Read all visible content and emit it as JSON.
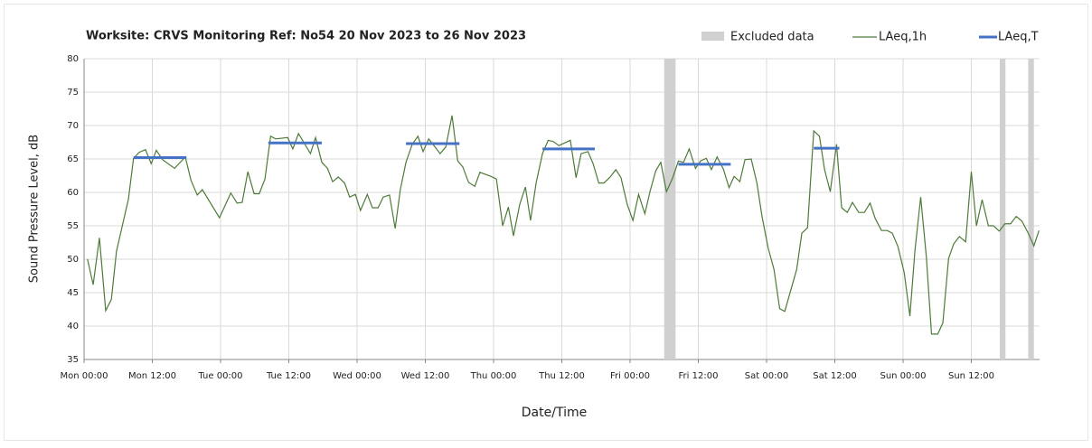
{
  "chart_data": {
    "type": "line",
    "title": "Worksite: CRVS   Monitoring Ref: No54    20 Nov 2023 to 26 Nov 2023",
    "x_label": "Date/Time",
    "y_label": "Sound Pressure Level, dB",
    "xlim": [
      0,
      168
    ],
    "xticks": [
      {
        "value": 0,
        "label": "Mon 00:00"
      },
      {
        "value": 12,
        "label": "Mon 12:00"
      },
      {
        "value": 24,
        "label": "Tue 00:00"
      },
      {
        "value": 36,
        "label": "Tue 12:00"
      },
      {
        "value": 48,
        "label": "Wed 00:00"
      },
      {
        "value": 60,
        "label": "Wed 12:00"
      },
      {
        "value": 72,
        "label": "Thu 00:00"
      },
      {
        "value": 84,
        "label": "Thu 12:00"
      },
      {
        "value": 96,
        "label": "Fri 00:00"
      },
      {
        "value": 108,
        "label": "Fri 12:00"
      },
      {
        "value": 120,
        "label": "Sat 00:00"
      },
      {
        "value": 132,
        "label": "Sat 12:00"
      },
      {
        "value": 144,
        "label": "Sun 00:00"
      },
      {
        "value": 156,
        "label": "Sun 12:00"
      }
    ],
    "ylim": [
      35,
      80
    ],
    "yticks": [
      35,
      40,
      45,
      50,
      55,
      60,
      65,
      70,
      75,
      80
    ],
    "grid": true,
    "excluded": {
      "name": "Excluded data",
      "color": "#d0d0d0",
      "ranges": [
        [
          102,
          104
        ],
        [
          161,
          162
        ],
        [
          166,
          167
        ]
      ]
    },
    "series": [
      {
        "name": "LAeq,1h",
        "color": "#4e7a3a",
        "x": [
          0.6,
          1.6,
          2.7,
          3.8,
          4.8,
          5.7,
          7.8,
          8.7,
          9.7,
          10.8,
          11.8,
          12.7,
          13.8,
          15.9,
          17.8,
          18.8,
          19.9,
          20.8,
          23.8,
          25.8,
          26.9,
          27.8,
          28.8,
          29.9,
          30.8,
          31.8,
          32.8,
          33.7,
          35.8,
          36.7,
          37.7,
          39.8,
          40.7,
          41.8,
          42.8,
          43.7,
          44.7,
          45.8,
          46.7,
          47.7,
          48.6,
          49.8,
          50.7,
          51.7,
          52.6,
          53.7,
          54.7,
          55.6,
          56.6,
          57.7,
          58.7,
          59.6,
          60.6,
          62.6,
          63.6,
          64.7,
          65.7,
          66.6,
          67.6,
          68.7,
          69.6,
          71.5,
          72.5,
          73.6,
          74.6,
          75.5,
          76.6,
          77.6,
          78.5,
          79.5,
          80.6,
          81.6,
          82.5,
          83.5,
          85.5,
          86.5,
          87.4,
          88.6,
          89.5,
          90.5,
          91.4,
          92.5,
          93.5,
          94.4,
          95.5,
          96.5,
          97.5,
          98.6,
          99.5,
          100.5,
          101.4,
          102.4,
          103.5,
          104.5,
          105.4,
          106.4,
          107.5,
          108.4,
          109.4,
          110.3,
          111.3,
          112.4,
          113.4,
          114.3,
          115.3,
          116.2,
          117.3,
          118.3,
          119.2,
          120.3,
          121.3,
          122.3,
          123.2,
          124.3,
          125.3,
          126.2,
          127.2,
          128.3,
          129.3,
          130.2,
          131.2,
          132.3,
          133.2,
          134.2,
          135.1,
          136.2,
          137.2,
          138.2,
          139.1,
          140.2,
          141.2,
          142.1,
          143.1,
          144.2,
          145.2,
          146.1,
          147.1,
          148.1,
          149,
          150.1,
          151,
          152,
          152.9,
          153.9,
          155,
          156,
          156.9,
          157.9,
          159,
          159.9,
          160.9,
          161.9,
          162.9,
          163.9,
          164.9,
          166,
          167,
          167.9
        ],
        "values": [
          50,
          46.2,
          53.2,
          42.3,
          44,
          51.2,
          59,
          65.1,
          66,
          66.4,
          64.3,
          66.3,
          64.9,
          63.6,
          65.3,
          61.8,
          59.6,
          60.4,
          56.2,
          59.9,
          58.4,
          58.5,
          63.1,
          59.8,
          59.8,
          62,
          68.4,
          68,
          68.2,
          66.5,
          68.8,
          65.8,
          68.2,
          64.5,
          63.6,
          61.6,
          62.3,
          61.4,
          59.3,
          59.7,
          57.3,
          59.7,
          57.7,
          57.7,
          59.3,
          59.6,
          54.6,
          60.4,
          64.5,
          67.2,
          68.4,
          66.1,
          68,
          65.8,
          66.8,
          71.5,
          64.7,
          63.8,
          61.5,
          60.9,
          63,
          62.4,
          62,
          55,
          57.8,
          53.5,
          58.2,
          60.8,
          55.8,
          61.5,
          65.8,
          67.8,
          67.6,
          67,
          67.8,
          62.2,
          65.8,
          66.1,
          64.3,
          61.4,
          61.4,
          62.3,
          63.4,
          62.2,
          58.2,
          55.8,
          59.7,
          56.8,
          60.1,
          63.2,
          64.5,
          60.1,
          62.2,
          64.7,
          64.5,
          66.5,
          63.6,
          64.7,
          65.1,
          63.4,
          65.3,
          63.5,
          60.7,
          62.4,
          61.6,
          64.9,
          65,
          61.4,
          56.4,
          51.6,
          48.5,
          42.6,
          42.2,
          45.5,
          48.5,
          53.9,
          54.7,
          69.2,
          68.4,
          63.4,
          60.1,
          67.2,
          57.7,
          57,
          58.5,
          57,
          57,
          58.4,
          56.1,
          54.3,
          54.3,
          53.9,
          51.9,
          48,
          41.5,
          51.4,
          59.3,
          50.3,
          38.8,
          38.8,
          40.5,
          50.1,
          52.3,
          53.4,
          52.6,
          63.1,
          55,
          58.9,
          55,
          55,
          54.2,
          55.3,
          55.3,
          56.4,
          55.7,
          53.9,
          52,
          54.3
        ]
      },
      {
        "name": "LAeq,T",
        "color": "#4472c4",
        "x_start": [
          8.7,
          32.4,
          56.6,
          80.6,
          104.5,
          128.3
        ],
        "x_end": [
          18,
          41.8,
          66,
          89.8,
          113.7,
          132.8
        ],
        "values": [
          65.2,
          67.4,
          67.3,
          66.5,
          64.2,
          66.6
        ]
      }
    ]
  }
}
